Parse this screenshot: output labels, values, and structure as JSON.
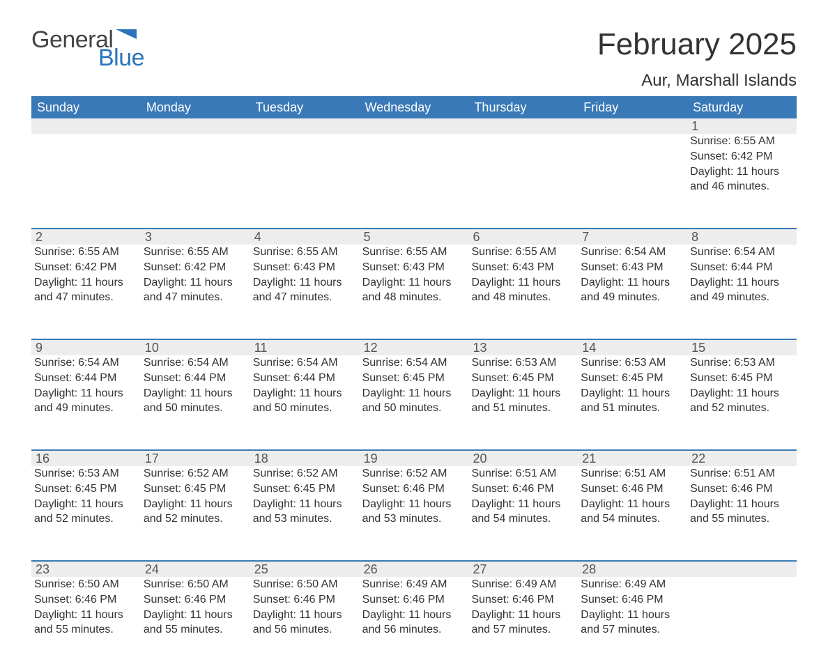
{
  "logo": {
    "text1": "General",
    "text2": "Blue",
    "flag_color": "#2a74bb"
  },
  "title": "February 2025",
  "location": "Aur, Marshall Islands",
  "colors": {
    "header_bg": "#3a79b7",
    "header_text": "#ffffff",
    "daynum_bg": "#ededed",
    "body_text": "#333333",
    "accent": "#2a74bb"
  },
  "weekdays": [
    "Sunday",
    "Monday",
    "Tuesday",
    "Wednesday",
    "Thursday",
    "Friday",
    "Saturday"
  ],
  "weeks": [
    [
      null,
      null,
      null,
      null,
      null,
      null,
      {
        "d": "1",
        "sr": "6:55 AM",
        "ss": "6:42 PM",
        "dl": "11 hours and 46 minutes."
      }
    ],
    [
      {
        "d": "2",
        "sr": "6:55 AM",
        "ss": "6:42 PM",
        "dl": "11 hours and 47 minutes."
      },
      {
        "d": "3",
        "sr": "6:55 AM",
        "ss": "6:42 PM",
        "dl": "11 hours and 47 minutes."
      },
      {
        "d": "4",
        "sr": "6:55 AM",
        "ss": "6:43 PM",
        "dl": "11 hours and 47 minutes."
      },
      {
        "d": "5",
        "sr": "6:55 AM",
        "ss": "6:43 PM",
        "dl": "11 hours and 48 minutes."
      },
      {
        "d": "6",
        "sr": "6:55 AM",
        "ss": "6:43 PM",
        "dl": "11 hours and 48 minutes."
      },
      {
        "d": "7",
        "sr": "6:54 AM",
        "ss": "6:43 PM",
        "dl": "11 hours and 49 minutes."
      },
      {
        "d": "8",
        "sr": "6:54 AM",
        "ss": "6:44 PM",
        "dl": "11 hours and 49 minutes."
      }
    ],
    [
      {
        "d": "9",
        "sr": "6:54 AM",
        "ss": "6:44 PM",
        "dl": "11 hours and 49 minutes."
      },
      {
        "d": "10",
        "sr": "6:54 AM",
        "ss": "6:44 PM",
        "dl": "11 hours and 50 minutes."
      },
      {
        "d": "11",
        "sr": "6:54 AM",
        "ss": "6:44 PM",
        "dl": "11 hours and 50 minutes."
      },
      {
        "d": "12",
        "sr": "6:54 AM",
        "ss": "6:45 PM",
        "dl": "11 hours and 50 minutes."
      },
      {
        "d": "13",
        "sr": "6:53 AM",
        "ss": "6:45 PM",
        "dl": "11 hours and 51 minutes."
      },
      {
        "d": "14",
        "sr": "6:53 AM",
        "ss": "6:45 PM",
        "dl": "11 hours and 51 minutes."
      },
      {
        "d": "15",
        "sr": "6:53 AM",
        "ss": "6:45 PM",
        "dl": "11 hours and 52 minutes."
      }
    ],
    [
      {
        "d": "16",
        "sr": "6:53 AM",
        "ss": "6:45 PM",
        "dl": "11 hours and 52 minutes."
      },
      {
        "d": "17",
        "sr": "6:52 AM",
        "ss": "6:45 PM",
        "dl": "11 hours and 52 minutes."
      },
      {
        "d": "18",
        "sr": "6:52 AM",
        "ss": "6:45 PM",
        "dl": "11 hours and 53 minutes."
      },
      {
        "d": "19",
        "sr": "6:52 AM",
        "ss": "6:46 PM",
        "dl": "11 hours and 53 minutes."
      },
      {
        "d": "20",
        "sr": "6:51 AM",
        "ss": "6:46 PM",
        "dl": "11 hours and 54 minutes."
      },
      {
        "d": "21",
        "sr": "6:51 AM",
        "ss": "6:46 PM",
        "dl": "11 hours and 54 minutes."
      },
      {
        "d": "22",
        "sr": "6:51 AM",
        "ss": "6:46 PM",
        "dl": "11 hours and 55 minutes."
      }
    ],
    [
      {
        "d": "23",
        "sr": "6:50 AM",
        "ss": "6:46 PM",
        "dl": "11 hours and 55 minutes."
      },
      {
        "d": "24",
        "sr": "6:50 AM",
        "ss": "6:46 PM",
        "dl": "11 hours and 55 minutes."
      },
      {
        "d": "25",
        "sr": "6:50 AM",
        "ss": "6:46 PM",
        "dl": "11 hours and 56 minutes."
      },
      {
        "d": "26",
        "sr": "6:49 AM",
        "ss": "6:46 PM",
        "dl": "11 hours and 56 minutes."
      },
      {
        "d": "27",
        "sr": "6:49 AM",
        "ss": "6:46 PM",
        "dl": "11 hours and 57 minutes."
      },
      {
        "d": "28",
        "sr": "6:49 AM",
        "ss": "6:46 PM",
        "dl": "11 hours and 57 minutes."
      },
      null
    ]
  ],
  "labels": {
    "sunrise": "Sunrise: ",
    "sunset": "Sunset: ",
    "daylight": "Daylight: "
  }
}
